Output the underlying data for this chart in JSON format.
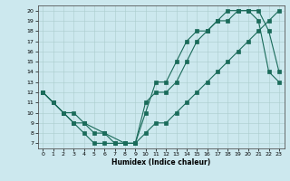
{
  "xlabel": "Humidex (Indice chaleur)",
  "xlim": [
    -0.5,
    23.5
  ],
  "ylim": [
    6.5,
    20.5
  ],
  "yticks": [
    7,
    8,
    9,
    10,
    11,
    12,
    13,
    14,
    15,
    16,
    17,
    18,
    19,
    20
  ],
  "xticks": [
    0,
    1,
    2,
    3,
    4,
    5,
    6,
    7,
    8,
    9,
    10,
    11,
    12,
    13,
    14,
    15,
    16,
    17,
    18,
    19,
    20,
    21,
    22,
    23
  ],
  "bg_color": "#cce8ee",
  "grid_color": "#aacccc",
  "line_color": "#1a6b5a",
  "line1_x": [
    0,
    1,
    2,
    3,
    4,
    5,
    6,
    7,
    8,
    9,
    10,
    11,
    12,
    13,
    14,
    15,
    16,
    17,
    18,
    19,
    20,
    21,
    22,
    23
  ],
  "line1_y": [
    12,
    11,
    10,
    9,
    8,
    7,
    7,
    7,
    7,
    7,
    10,
    13,
    13,
    15,
    17,
    18,
    18,
    19,
    19,
    20,
    20,
    20,
    18,
    14
  ],
  "line2_x": [
    0,
    1,
    2,
    3,
    4,
    5,
    6,
    7,
    8,
    9,
    10,
    11,
    12,
    13,
    14,
    15,
    16,
    17,
    18,
    19,
    20,
    21,
    22,
    23
  ],
  "line2_y": [
    12,
    11,
    10,
    10,
    9,
    8,
    8,
    7,
    7,
    7,
    8,
    9,
    9,
    10,
    11,
    12,
    13,
    14,
    15,
    16,
    17,
    18,
    19,
    20
  ],
  "line3_x": [
    0,
    2,
    3,
    4,
    6,
    8,
    9,
    10,
    11,
    12,
    13,
    14,
    15,
    16,
    17,
    18,
    19,
    20,
    21,
    22,
    23
  ],
  "line3_y": [
    12,
    10,
    9,
    9,
    8,
    7,
    7,
    11,
    12,
    12,
    13,
    15,
    17,
    18,
    19,
    20,
    20,
    20,
    19,
    14,
    13
  ]
}
